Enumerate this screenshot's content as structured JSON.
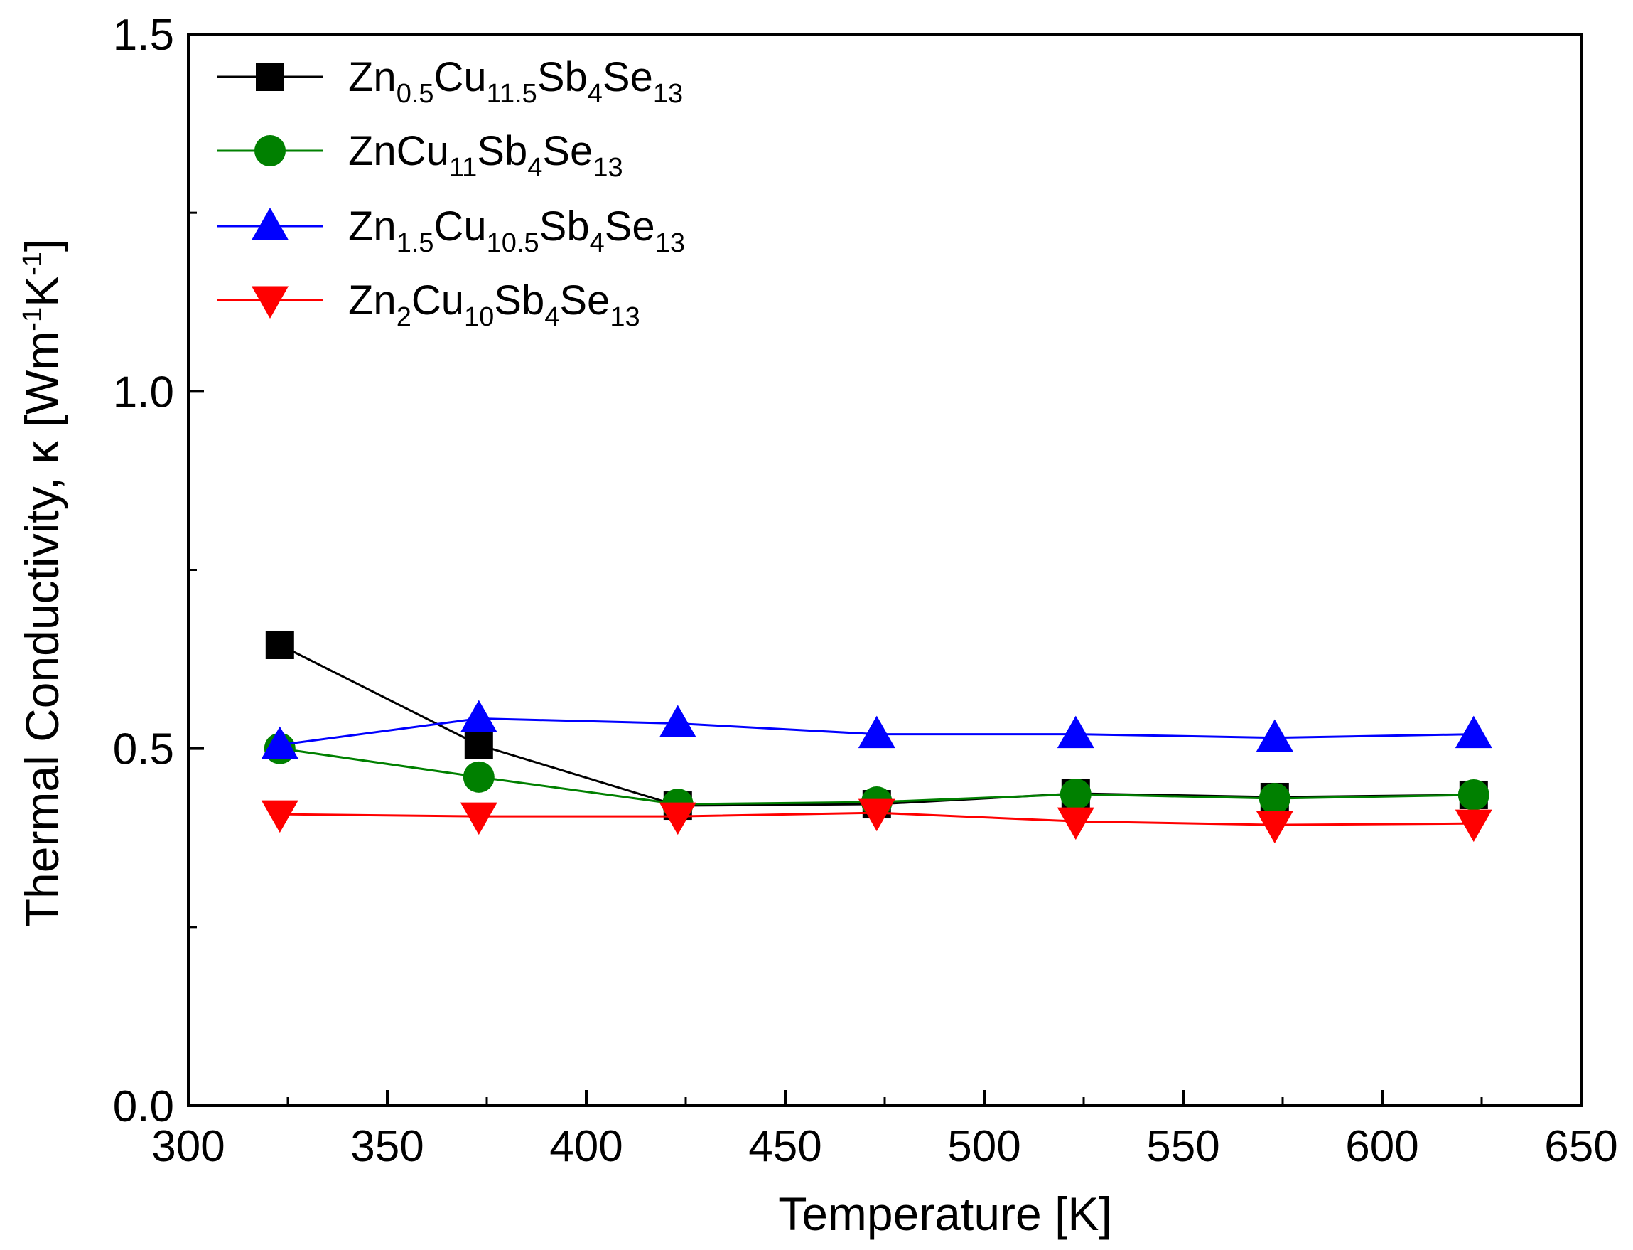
{
  "chart_data": {
    "type": "line",
    "title": "",
    "xlabel": "Temperature [K]",
    "ylabel_prefix": "Thermal Conductivity, κ [Wm",
    "ylabel_sup1": "-1",
    "ylabel_mid": "K",
    "ylabel_sup2": "-1",
    "ylabel_suffix": "]",
    "xlim": [
      300,
      650
    ],
    "ylim": [
      0.0,
      1.5
    ],
    "xticks": [
      300,
      350,
      400,
      450,
      500,
      550,
      600,
      650
    ],
    "xtick_labels": [
      "300",
      "350",
      "400",
      "450",
      "500",
      "550",
      "600",
      "650"
    ],
    "yticks": [
      0.0,
      0.5,
      1.0,
      1.5
    ],
    "ytick_labels": [
      "0.0",
      "0.5",
      "1.0",
      "1.5"
    ],
    "y_minor_ticks": [
      0.25,
      0.75,
      1.25
    ],
    "grid": false,
    "legend_position": "top-left",
    "x": [
      323,
      373,
      423,
      473,
      523,
      573,
      623
    ],
    "series": [
      {
        "name": "Zn0.5Cu11.5Sb4Se13",
        "label_parts": [
          [
            "Zn",
            ""
          ],
          [
            "0.5",
            "sub"
          ],
          [
            "Cu",
            ""
          ],
          [
            "11.5",
            "sub"
          ],
          [
            "Sb",
            ""
          ],
          [
            "4",
            "sub"
          ],
          [
            "Se",
            ""
          ],
          [
            "13",
            "sub"
          ]
        ],
        "marker": "square",
        "color": "#000000",
        "values": [
          0.645,
          0.505,
          0.42,
          0.422,
          0.437,
          0.432,
          0.435
        ]
      },
      {
        "name": "ZnCu11Sb4Se13",
        "label_parts": [
          [
            "ZnCu",
            ""
          ],
          [
            "11",
            "sub"
          ],
          [
            "Sb",
            ""
          ],
          [
            "4",
            "sub"
          ],
          [
            "Se",
            ""
          ],
          [
            "13",
            "sub"
          ]
        ],
        "marker": "circle",
        "color": "#008000",
        "values": [
          0.5,
          0.46,
          0.422,
          0.425,
          0.436,
          0.43,
          0.435
        ]
      },
      {
        "name": "Zn1.5Cu10.5Sb4Se13",
        "label_parts": [
          [
            "Zn",
            ""
          ],
          [
            "1.5",
            "sub"
          ],
          [
            "Cu",
            ""
          ],
          [
            "10.5",
            "sub"
          ],
          [
            "Sb",
            ""
          ],
          [
            "4",
            "sub"
          ],
          [
            "Se",
            ""
          ],
          [
            "13",
            "sub"
          ]
        ],
        "marker": "triangle-up",
        "color": "#0000ff",
        "values": [
          0.505,
          0.542,
          0.535,
          0.52,
          0.52,
          0.515,
          0.52
        ]
      },
      {
        "name": "Zn2Cu10Sb4Se13",
        "label_parts": [
          [
            "Zn",
            ""
          ],
          [
            "2",
            "sub"
          ],
          [
            "Cu",
            ""
          ],
          [
            "10",
            "sub"
          ],
          [
            "Sb",
            ""
          ],
          [
            "4",
            "sub"
          ],
          [
            "Se",
            ""
          ],
          [
            "13",
            "sub"
          ]
        ],
        "marker": "triangle-down",
        "color": "#ff0000",
        "values": [
          0.408,
          0.405,
          0.405,
          0.41,
          0.398,
          0.393,
          0.395
        ]
      }
    ]
  }
}
